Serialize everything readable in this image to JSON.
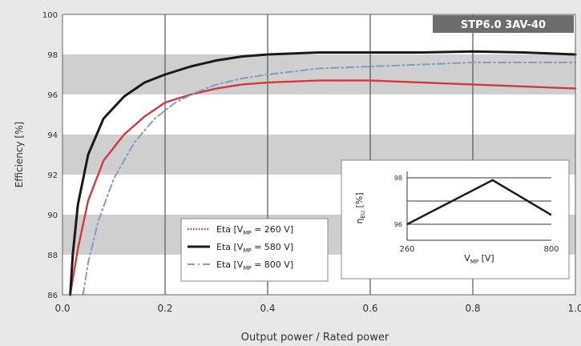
{
  "chart_data": {
    "type": "line",
    "badge": "STP6.0 3AV-40",
    "xlabel": "Output power / Rated power",
    "ylabel": "Efficiency [%]",
    "xlim": [
      0,
      1
    ],
    "ylim": [
      86,
      100
    ],
    "x_ticks": [
      "0.0",
      "0.2",
      "0.4",
      "0.6",
      "0.8",
      "1.0"
    ],
    "y_ticks": [
      "86",
      "88",
      "90",
      "92",
      "94",
      "96",
      "98",
      "100"
    ],
    "grid": true,
    "legend_position": "bottom-center",
    "series": [
      {
        "name_parts": [
          "Eta [V",
          "MP",
          " = 260 V]"
        ],
        "color": "#d2353a",
        "style": "dotted",
        "x": [
          0.015,
          0.03,
          0.05,
          0.08,
          0.12,
          0.16,
          0.2,
          0.25,
          0.3,
          0.35,
          0.4,
          0.5,
          0.6,
          0.7,
          0.8,
          0.9,
          1.0
        ],
        "y": [
          86.0,
          88.3,
          90.7,
          92.7,
          94.0,
          94.9,
          95.6,
          96.0,
          96.3,
          96.5,
          96.6,
          96.7,
          96.7,
          96.6,
          96.5,
          96.4,
          96.3
        ]
      },
      {
        "name_parts": [
          "Eta [V",
          "MP",
          " = 580 V]"
        ],
        "color": "#1a1a1a",
        "style": "solid",
        "x": [
          0.015,
          0.02,
          0.03,
          0.05,
          0.08,
          0.12,
          0.16,
          0.2,
          0.25,
          0.3,
          0.35,
          0.4,
          0.5,
          0.6,
          0.7,
          0.8,
          0.9,
          1.0
        ],
        "y": [
          86.0,
          88.0,
          90.5,
          93.0,
          94.8,
          95.9,
          96.6,
          97.0,
          97.4,
          97.7,
          97.9,
          98.0,
          98.1,
          98.1,
          98.1,
          98.15,
          98.1,
          98.0
        ]
      },
      {
        "name_parts": [
          "Eta [V",
          "MP",
          " = 800 V]"
        ],
        "color": "#7e9ec4",
        "style": "dashdot",
        "x": [
          0.04,
          0.05,
          0.07,
          0.1,
          0.14,
          0.18,
          0.22,
          0.26,
          0.3,
          0.35,
          0.4,
          0.5,
          0.6,
          0.7,
          0.8,
          0.9,
          1.0
        ],
        "y": [
          86.0,
          87.6,
          89.7,
          91.8,
          93.6,
          94.8,
          95.6,
          96.1,
          96.5,
          96.8,
          97.0,
          97.3,
          97.4,
          97.5,
          97.6,
          97.6,
          97.6
        ]
      }
    ],
    "inset": {
      "type": "line",
      "xlabel_parts": [
        "V",
        "MP",
        " [V]"
      ],
      "ylabel_parts": [
        "η",
        "EU",
        " [%]"
      ],
      "x_ticks": [
        "260",
        "800"
      ],
      "y_ticks": [
        "96",
        "98"
      ],
      "series": [
        {
          "color": "#1a1a1a",
          "x": [
            260,
            580,
            800
          ],
          "y": [
            96.0,
            97.9,
            96.4
          ]
        }
      ]
    }
  }
}
